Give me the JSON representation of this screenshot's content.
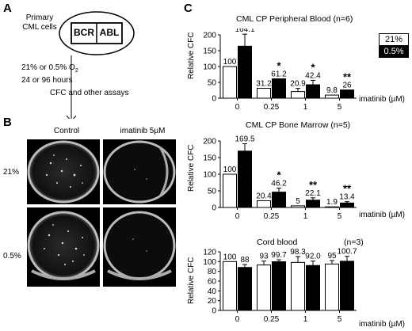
{
  "panels": {
    "a": "A",
    "b": "B",
    "c": "C"
  },
  "schematic": {
    "cells_line1": "Primary",
    "cells_line2": "CML cells",
    "bcr": "BCR",
    "abl": "ABL",
    "conditions_line1": "21% or 0.5% O",
    "conditions_sub": "2",
    "conditions_line2": "24 or 96 hours",
    "assays": "CFC and other assays"
  },
  "photos": {
    "col_headers": [
      "Control",
      "imatinib 5µM"
    ],
    "row_headers": [
      "21%",
      "0.5%"
    ]
  },
  "legend": {
    "entries": [
      "21%",
      "0.5%"
    ],
    "colors": [
      "#ffffff",
      "#000000"
    ]
  },
  "chart_data": [
    {
      "type": "bar",
      "title": "CML CP Peripheral Blood (n=6)",
      "ylabel": "Relative CFC",
      "xlabel": "imatinib (µM)",
      "categories": [
        "0",
        "0.25",
        "1",
        "5"
      ],
      "ylim": [
        0,
        200
      ],
      "yticks": [
        0,
        50,
        100,
        150,
        200
      ],
      "grid": false,
      "series": [
        {
          "name": "21%",
          "color": "#ffffff",
          "values": [
            100,
            31.2,
            20.9,
            9.8
          ],
          "labels": [
            "100",
            "31.2",
            "20.9",
            "9.8"
          ],
          "errors": [
            0,
            0,
            10,
            0
          ]
        },
        {
          "name": "0.5%",
          "color": "#000000",
          "values": [
            164.1,
            61.2,
            42.4,
            26
          ],
          "labels": [
            "164.1",
            "61.2",
            "42.4",
            "26"
          ],
          "errors": [
            38,
            0,
            14,
            0
          ]
        }
      ],
      "significance": [
        "",
        "*",
        "*",
        "**"
      ]
    },
    {
      "type": "bar",
      "title": "CML CP Bone Marrow (n=5)",
      "ylabel": "Relative CFC",
      "xlabel": "imatinib (µM)",
      "categories": [
        "0",
        "0.25",
        "1",
        "5"
      ],
      "ylim": [
        0,
        200
      ],
      "yticks": [
        0,
        50,
        100,
        150,
        200
      ],
      "grid": false,
      "series": [
        {
          "name": "21%",
          "color": "#ffffff",
          "values": [
            100,
            20.4,
            5,
            1.9
          ],
          "labels": [
            "100",
            "20.4",
            "5",
            "1.9"
          ],
          "errors": [
            0,
            0,
            0,
            0
          ]
        },
        {
          "name": "0.5%",
          "color": "#000000",
          "values": [
            169.5,
            46.2,
            22.1,
            13.4
          ],
          "labels": [
            "169.5",
            "46.2",
            "22.1",
            "13.4"
          ],
          "errors": [
            22,
            12,
            7,
            4
          ]
        }
      ],
      "significance": [
        "**",
        "*",
        "**",
        "**"
      ]
    },
    {
      "type": "bar",
      "title": "Cord blood",
      "title_n": "(n=3)",
      "ylabel": "Relative CFC",
      "xlabel": "imatinib (µM)",
      "categories": [
        "0",
        "0.25",
        "1",
        "5"
      ],
      "ylim": [
        0,
        120
      ],
      "yticks": [
        0,
        20,
        40,
        60,
        80,
        100,
        120
      ],
      "grid": false,
      "series": [
        {
          "name": "21%",
          "color": "#ffffff",
          "values": [
            100,
            93,
            98.3,
            95
          ],
          "labels": [
            "100",
            "93",
            "98.3",
            "95"
          ],
          "errors": [
            0,
            8,
            12,
            7
          ]
        },
        {
          "name": "0.5%",
          "color": "#000000",
          "values": [
            88,
            99.7,
            92.0,
            100.7
          ],
          "labels": [
            "88",
            "99.7",
            "92.0",
            "100.7"
          ],
          "errors": [
            6,
            4,
            9,
            10
          ]
        }
      ],
      "significance": [
        "",
        "",
        "",
        ""
      ]
    }
  ]
}
